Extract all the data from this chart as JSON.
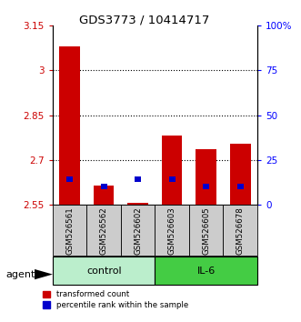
{
  "title": "GDS3773 / 10414717",
  "samples": [
    "GSM526561",
    "GSM526562",
    "GSM526602",
    "GSM526603",
    "GSM526605",
    "GSM526678"
  ],
  "groups": [
    "control",
    "control",
    "control",
    "IL-6",
    "IL-6",
    "IL-6"
  ],
  "red_bar_bottom": 2.55,
  "red_bar_top": [
    3.08,
    2.615,
    2.555,
    2.78,
    2.735,
    2.755
  ],
  "blue_pct": [
    14,
    10,
    14,
    14,
    10,
    10
  ],
  "ylim_left": [
    2.55,
    3.15
  ],
  "ylim_right": [
    0,
    100
  ],
  "yticks_left": [
    2.55,
    2.7,
    2.85,
    3.0,
    3.15
  ],
  "ytick_labels_left": [
    "2.55",
    "2.7",
    "2.85",
    "3",
    "3.15"
  ],
  "yticks_right": [
    0,
    25,
    50,
    75,
    100
  ],
  "ytick_labels_right": [
    "0",
    "25",
    "50",
    "75",
    "100%"
  ],
  "hlines": [
    3.0,
    2.85,
    2.7
  ],
  "bar_width": 0.6,
  "red_color": "#CC0000",
  "blue_color": "#0000CC",
  "sample_bg_color": "#CCCCCC",
  "control_color": "#BBEECC",
  "il6_color": "#44CC44",
  "agent_label": "agent"
}
